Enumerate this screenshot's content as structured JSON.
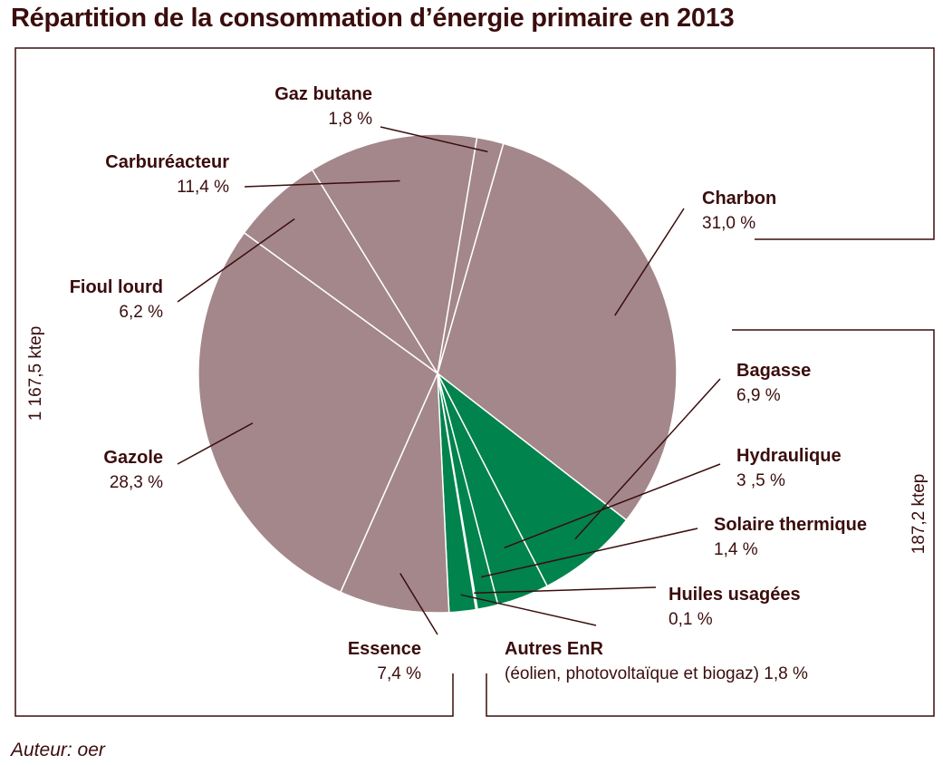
{
  "title": "Répartition de la consommation d’énergie primaire en 2013",
  "author": "Auteur: oer",
  "colors": {
    "fossil": "#a4878a",
    "renewable": "#00834c",
    "text": "#3b0d0d"
  },
  "chart_data": {
    "type": "pie",
    "title": "Répartition de la consommation d’énergie primaire en 2013",
    "slices": [
      {
        "name": "Charbon",
        "value_label": "31,0 %",
        "value": 31.0,
        "group": "fossil"
      },
      {
        "name": "Bagasse",
        "value_label": "6,9 %",
        "value": 6.9,
        "group": "renewable"
      },
      {
        "name": "Hydraulique",
        "value_label": "3 ,5 %",
        "value": 3.5,
        "group": "renewable"
      },
      {
        "name": "Solaire thermique",
        "value_label": "1,4 %",
        "value": 1.4,
        "group": "renewable"
      },
      {
        "name": "Huiles usagées",
        "value_label": "0,1 %",
        "value": 0.1,
        "group": "renewable"
      },
      {
        "name": "Autres EnR",
        "value_label": "(éolien, photovoltaïque et biogaz) 1,8 %",
        "value": 1.8,
        "group": "renewable"
      },
      {
        "name": "Essence",
        "value_label": "7,4 %",
        "value": 7.4,
        "group": "fossil"
      },
      {
        "name": "Gazole",
        "value_label": "28,3 %",
        "value": 28.3,
        "group": "fossil"
      },
      {
        "name": "Fioul lourd",
        "value_label": "6,2 %",
        "value": 6.2,
        "group": "fossil"
      },
      {
        "name": "Carburéacteur",
        "value_label": "11,4 %",
        "value": 11.4,
        "group": "fossil"
      },
      {
        "name": "Gaz butane",
        "value_label": "1,8 %",
        "value": 1.8,
        "group": "fossil"
      }
    ],
    "groups": [
      {
        "name": "fossil",
        "total_label": "1 167,5 ktep"
      },
      {
        "name": "renewable",
        "total_label": "187,2 ktep"
      }
    ]
  }
}
